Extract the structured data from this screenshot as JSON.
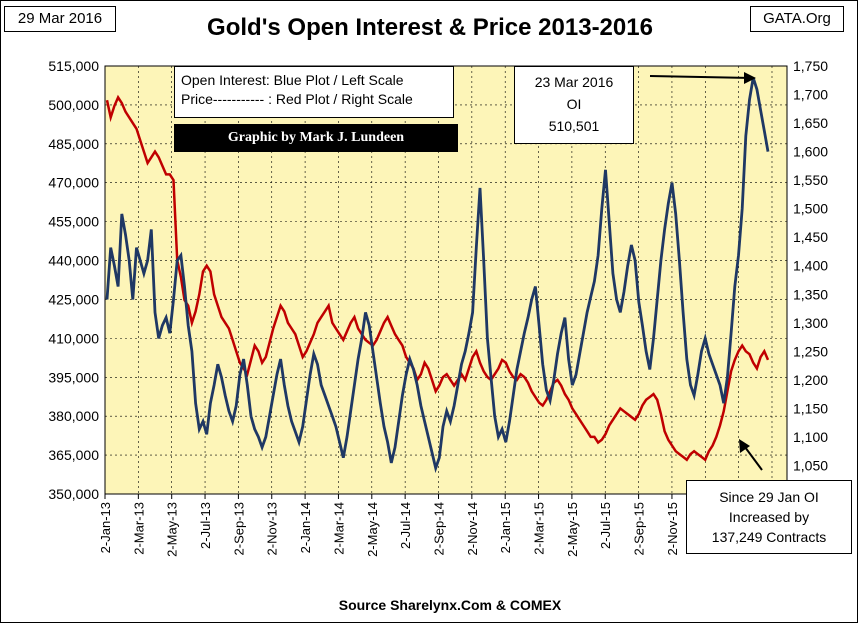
{
  "header": {
    "date_label": "29 Mar 2016",
    "site_label": "GATA.Org",
    "title": "Gold's Open Interest & Price 2013-2016",
    "source": "Source Sharelynx.Com & COMEX"
  },
  "legend": {
    "line1": "Open Interest:  Blue Plot / Left Scale",
    "line2": "Price----------- : Red Plot / Right Scale",
    "credit": "Graphic by Mark J. Lundeen"
  },
  "annotations": {
    "peak": {
      "line1": "23 Mar 2016",
      "line2": "OI",
      "line3": "510,501"
    },
    "since": {
      "line1": "Since 29 Jan OI",
      "line2": "Increased by",
      "line3": "137,249 Contracts"
    }
  },
  "colors": {
    "plot_bg": "#fdf5b8",
    "oi_line": "#1f3864",
    "price_line": "#c00000",
    "grid": "#000000"
  },
  "chart_data": {
    "type": "line",
    "x_ticks": [
      "2-Jan-13",
      "2-Mar-13",
      "2-May-13",
      "2-Jul-13",
      "2-Sep-13",
      "2-Nov-13",
      "2-Jan-14",
      "2-Mar-14",
      "2-May-14",
      "2-Jul-14",
      "2-Sep-14",
      "2-Nov-14",
      "2-Jan-15",
      "2-Mar-15",
      "2-May-15",
      "2-Jul-15",
      "2-Sep-15",
      "2-Nov-15",
      "2-",
      "2-",
      "2-"
    ],
    "y_left_ticks": [
      "515,000",
      "500,000",
      "485,000",
      "470,000",
      "455,000",
      "440,000",
      "425,000",
      "410,000",
      "395,000",
      "380,000",
      "365,000",
      "350,000"
    ],
    "y_right_ticks": [
      "1,750",
      "1,700",
      "1,650",
      "1,600",
      "1,550",
      "1,500",
      "1,450",
      "1,400",
      "1,350",
      "1,300",
      "1,250",
      "1,200",
      "1,150",
      "1,100",
      "1,050"
    ],
    "y_left_range": [
      350000,
      515000
    ],
    "y_right_range": [
      1000,
      1750
    ],
    "series": [
      {
        "axis": "left",
        "x": [
          0,
          1,
          2,
          3,
          4,
          5,
          6,
          7,
          8,
          9,
          10,
          11,
          12,
          13,
          14,
          15,
          16,
          17,
          18,
          19,
          20,
          21,
          22,
          23,
          24,
          25,
          26,
          27,
          28,
          29,
          30,
          31,
          32,
          33,
          34,
          35,
          36,
          37,
          38,
          39,
          40,
          41,
          42,
          43,
          44,
          45,
          46,
          47,
          48,
          49,
          50,
          51,
          52,
          53,
          54,
          55,
          56,
          57,
          58,
          59,
          60,
          61,
          62,
          63,
          64,
          65,
          66,
          67,
          68,
          69,
          70,
          71,
          72,
          73,
          74,
          75,
          76,
          77,
          78,
          79,
          80,
          81,
          82,
          83,
          84,
          85,
          86,
          87,
          88,
          89,
          90,
          91,
          92,
          93,
          94,
          95,
          96,
          97,
          98,
          99,
          100,
          101,
          102,
          103,
          104,
          105,
          106,
          107,
          108,
          109,
          110,
          111,
          112,
          113,
          114,
          115,
          116,
          117,
          118,
          119,
          120,
          121,
          122,
          123,
          124,
          125,
          126,
          127,
          128,
          129,
          130,
          131,
          132,
          133,
          134,
          135,
          136,
          137,
          138,
          139,
          140,
          141,
          142,
          143,
          144,
          145,
          146,
          147,
          148,
          149,
          150,
          151,
          152,
          153,
          154,
          155,
          156,
          157,
          158,
          159,
          160,
          161,
          162,
          163,
          164,
          165,
          166,
          167,
          168,
          169,
          170,
          171,
          172,
          173,
          174,
          175,
          176,
          177,
          178,
          179
        ],
        "values": [
          425000,
          445000,
          438000,
          430000,
          458000,
          450000,
          440000,
          425000,
          445000,
          440000,
          435000,
          440000,
          452000,
          420000,
          410000,
          415000,
          418000,
          412000,
          425000,
          440000,
          442000,
          430000,
          415000,
          405000,
          385000,
          375000,
          378000,
          373000,
          385000,
          392000,
          400000,
          395000,
          388000,
          382000,
          378000,
          384000,
          396000,
          402000,
          392000,
          380000,
          375000,
          372000,
          368000,
          372000,
          380000,
          388000,
          396000,
          402000,
          392000,
          384000,
          378000,
          374000,
          370000,
          376000,
          386000,
          396000,
          404000,
          400000,
          392000,
          388000,
          384000,
          380000,
          376000,
          370000,
          364000,
          372000,
          382000,
          392000,
          402000,
          410000,
          420000,
          415000,
          405000,
          395000,
          385000,
          376000,
          370000,
          362000,
          368000,
          378000,
          388000,
          396000,
          402000,
          398000,
          392000,
          384000,
          378000,
          372000,
          366000,
          360000,
          364000,
          376000,
          382000,
          378000,
          384000,
          392000,
          400000,
          405000,
          412000,
          420000,
          445000,
          468000,
          440000,
          410000,
          395000,
          380000,
          372000,
          375000,
          370000,
          378000,
          388000,
          398000,
          405000,
          412000,
          418000,
          425000,
          430000,
          415000,
          400000,
          390000,
          386000,
          394000,
          404000,
          412000,
          418000,
          402000,
          392000,
          396000,
          404000,
          412000,
          420000,
          426000,
          432000,
          442000,
          460000,
          475000,
          455000,
          435000,
          425000,
          420000,
          428000,
          438000,
          446000,
          440000,
          424000,
          415000,
          405000,
          398000,
          410000,
          425000,
          440000,
          452000,
          462000,
          470000,
          458000,
          440000,
          420000,
          402000,
          392000,
          388000,
          396000,
          405000,
          410000,
          404000,
          400000,
          396000,
          392000,
          385000,
          395000,
          412000,
          430000,
          442000,
          460000,
          488000,
          502000,
          510501,
          506000,
          498000,
          490000,
          482000
        ]
      },
      {
        "axis": "right",
        "x": [
          0,
          1,
          2,
          3,
          4,
          5,
          6,
          7,
          8,
          9,
          10,
          11,
          12,
          13,
          14,
          15,
          16,
          17,
          18,
          19,
          20,
          21,
          22,
          23,
          24,
          25,
          26,
          27,
          28,
          29,
          30,
          31,
          32,
          33,
          34,
          35,
          36,
          37,
          38,
          39,
          40,
          41,
          42,
          43,
          44,
          45,
          46,
          47,
          48,
          49,
          50,
          51,
          52,
          53,
          54,
          55,
          56,
          57,
          58,
          59,
          60,
          61,
          62,
          63,
          64,
          65,
          66,
          67,
          68,
          69,
          70,
          71,
          72,
          73,
          74,
          75,
          76,
          77,
          78,
          79,
          80,
          81,
          82,
          83,
          84,
          85,
          86,
          87,
          88,
          89,
          90,
          91,
          92,
          93,
          94,
          95,
          96,
          97,
          98,
          99,
          100,
          101,
          102,
          103,
          104,
          105,
          106,
          107,
          108,
          109,
          110,
          111,
          112,
          113,
          114,
          115,
          116,
          117,
          118,
          119,
          120,
          121,
          122,
          123,
          124,
          125,
          126,
          127,
          128,
          129,
          130,
          131,
          132,
          133,
          134,
          135,
          136,
          137,
          138,
          139,
          140,
          141,
          142,
          143,
          144,
          145,
          146,
          147,
          148,
          149,
          150,
          151,
          152,
          153,
          154,
          155,
          156,
          157,
          158,
          159,
          160,
          161,
          162,
          163,
          164,
          165,
          166,
          167,
          168,
          169,
          170,
          171,
          172,
          173,
          174,
          175,
          176,
          177,
          178,
          179
        ],
        "values": [
          1690,
          1660,
          1680,
          1695,
          1685,
          1670,
          1660,
          1650,
          1640,
          1620,
          1600,
          1580,
          1590,
          1600,
          1590,
          1575,
          1560,
          1560,
          1550,
          1410,
          1380,
          1340,
          1330,
          1300,
          1320,
          1350,
          1390,
          1400,
          1390,
          1350,
          1330,
          1310,
          1300,
          1290,
          1270,
          1250,
          1230,
          1220,
          1210,
          1235,
          1260,
          1250,
          1230,
          1240,
          1265,
          1290,
          1310,
          1330,
          1320,
          1300,
          1290,
          1280,
          1260,
          1240,
          1250,
          1265,
          1280,
          1300,
          1310,
          1320,
          1330,
          1300,
          1290,
          1280,
          1270,
          1285,
          1300,
          1310,
          1290,
          1280,
          1270,
          1265,
          1260,
          1270,
          1285,
          1300,
          1310,
          1295,
          1280,
          1270,
          1260,
          1240,
          1230,
          1220,
          1200,
          1210,
          1230,
          1220,
          1200,
          1180,
          1190,
          1205,
          1210,
          1200,
          1190,
          1200,
          1210,
          1200,
          1220,
          1240,
          1250,
          1230,
          1215,
          1205,
          1200,
          1210,
          1220,
          1235,
          1230,
          1215,
          1205,
          1200,
          1210,
          1205,
          1195,
          1180,
          1170,
          1160,
          1155,
          1165,
          1180,
          1195,
          1200,
          1190,
          1175,
          1165,
          1150,
          1140,
          1130,
          1120,
          1110,
          1100,
          1100,
          1090,
          1095,
          1105,
          1120,
          1130,
          1140,
          1150,
          1145,
          1140,
          1135,
          1130,
          1140,
          1155,
          1165,
          1170,
          1175,
          1165,
          1140,
          1110,
          1095,
          1085,
          1075,
          1070,
          1065,
          1060,
          1070,
          1075,
          1070,
          1065,
          1060,
          1075,
          1085,
          1100,
          1120,
          1145,
          1180,
          1215,
          1235,
          1250,
          1260,
          1250,
          1245,
          1230,
          1220,
          1240,
          1250,
          1235
        ]
      }
    ]
  }
}
